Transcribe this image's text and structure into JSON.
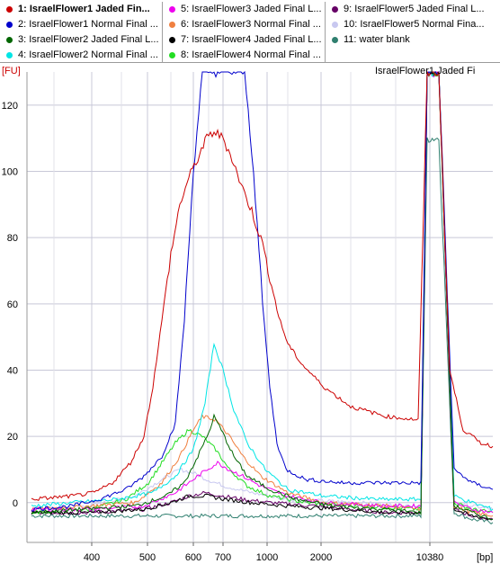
{
  "legend": [
    {
      "label": "1: IsraelFlower1 Jaded Fin...",
      "color": "#cc0000",
      "selected": true
    },
    {
      "label": "2: IsraelFlower1 Normal Final ...",
      "color": "#0000cc",
      "selected": false
    },
    {
      "label": "3: IsraelFlower2 Jaded Final L...",
      "color": "#006600",
      "selected": false
    },
    {
      "label": "4: IsraelFlower2 Normal Final ...",
      "color": "#00e5e5",
      "selected": false
    },
    {
      "label": "5: IsraelFlower3 Jaded Final L...",
      "color": "#ee00ee",
      "selected": false
    },
    {
      "label": "6: IsraelFlower3 Normal Final ...",
      "color": "#f08040",
      "selected": false
    },
    {
      "label": "7: IsraelFlower4 Jaded Final L...",
      "color": "#000000",
      "selected": false
    },
    {
      "label": "8: IsraelFlower4 Normal Final ...",
      "color": "#22dd22",
      "selected": false
    },
    {
      "label": "9: IsraelFlower5 Jaded Final L...",
      "color": "#660066",
      "selected": false
    },
    {
      "label": "10: IsraelFlower5 Normal Fina...",
      "color": "#c8c8f0",
      "selected": false
    },
    {
      "label": "11: water blank",
      "color": "#2f7f6f",
      "selected": false
    }
  ],
  "chart_data": {
    "type": "line",
    "sample_title": "IsraelFlower1 Jaded Fi",
    "y_unit": "[FU]",
    "x_unit": "[bp]",
    "ylim": [
      -12,
      130
    ],
    "yticks": [
      0,
      20,
      40,
      60,
      80,
      100,
      120
    ],
    "xtick_labels": [
      "400",
      "500",
      "600",
      "700",
      "1000",
      "2000",
      "10380"
    ],
    "grid": true,
    "series": [
      {
        "color": "#cc0000",
        "points": [
          [
            35,
            1
          ],
          [
            80,
            2
          ],
          [
            105,
            3
          ],
          [
            125,
            6
          ],
          [
            145,
            12
          ],
          [
            160,
            20
          ],
          [
            170,
            35
          ],
          [
            180,
            55
          ],
          [
            190,
            75
          ],
          [
            200,
            90
          ],
          [
            210,
            98
          ],
          [
            220,
            104
          ],
          [
            230,
            110
          ],
          [
            238,
            112
          ],
          [
            248,
            110
          ],
          [
            258,
            104
          ],
          [
            268,
            96
          ],
          [
            280,
            88
          ],
          [
            292,
            78
          ],
          [
            300,
            68
          ],
          [
            310,
            56
          ],
          [
            320,
            48
          ],
          [
            335,
            42
          ],
          [
            360,
            35
          ],
          [
            390,
            29
          ],
          [
            430,
            26
          ],
          [
            465,
            25
          ],
          [
            475,
            130
          ],
          [
            488,
            130
          ],
          [
            500,
            40
          ],
          [
            515,
            22
          ],
          [
            535,
            18
          ],
          [
            548,
            17
          ]
        ]
      },
      {
        "color": "#0000cc",
        "points": [
          [
            35,
            -2
          ],
          [
            80,
            -1
          ],
          [
            110,
            1
          ],
          [
            140,
            4
          ],
          [
            160,
            8
          ],
          [
            180,
            14
          ],
          [
            195,
            24
          ],
          [
            205,
            55
          ],
          [
            215,
            100
          ],
          [
            225,
            130
          ],
          [
            230,
            130
          ],
          [
            272,
            130
          ],
          [
            282,
            100
          ],
          [
            292,
            60
          ],
          [
            300,
            35
          ],
          [
            308,
            18
          ],
          [
            318,
            10
          ],
          [
            340,
            7
          ],
          [
            380,
            6
          ],
          [
            440,
            6
          ],
          [
            468,
            6
          ],
          [
            475,
            130
          ],
          [
            488,
            130
          ],
          [
            505,
            10
          ],
          [
            525,
            6
          ],
          [
            548,
            4
          ]
        ]
      },
      {
        "color": "#006600",
        "points": [
          [
            35,
            -3
          ],
          [
            90,
            -2
          ],
          [
            150,
            -1
          ],
          [
            185,
            2
          ],
          [
            205,
            6
          ],
          [
            220,
            14
          ],
          [
            232,
            21
          ],
          [
            238,
            26
          ],
          [
            246,
            22
          ],
          [
            260,
            14
          ],
          [
            275,
            8
          ],
          [
            300,
            4
          ],
          [
            330,
            1
          ],
          [
            370,
            -1
          ],
          [
            430,
            -2
          ],
          [
            468,
            -3
          ],
          [
            475,
            130
          ],
          [
            488,
            130
          ],
          [
            505,
            -1
          ],
          [
            525,
            -3
          ],
          [
            548,
            -5
          ]
        ]
      },
      {
        "color": "#00e5e5",
        "points": [
          [
            35,
            -1
          ],
          [
            80,
            0
          ],
          [
            130,
            1
          ],
          [
            170,
            3
          ],
          [
            195,
            8
          ],
          [
            215,
            16
          ],
          [
            228,
            30
          ],
          [
            238,
            48
          ],
          [
            248,
            40
          ],
          [
            260,
            28
          ],
          [
            275,
            18
          ],
          [
            295,
            10
          ],
          [
            320,
            4
          ],
          [
            360,
            2
          ],
          [
            420,
            1
          ],
          [
            468,
            1
          ],
          [
            475,
            130
          ],
          [
            488,
            130
          ],
          [
            505,
            2
          ],
          [
            525,
            0
          ],
          [
            548,
            -2
          ]
        ]
      },
      {
        "color": "#ee00ee",
        "points": [
          [
            35,
            -2
          ],
          [
            100,
            -2
          ],
          [
            160,
            -1
          ],
          [
            195,
            3
          ],
          [
            215,
            7
          ],
          [
            230,
            10
          ],
          [
            242,
            12
          ],
          [
            255,
            10
          ],
          [
            270,
            8
          ],
          [
            290,
            5
          ],
          [
            320,
            2
          ],
          [
            360,
            0
          ],
          [
            430,
            -1
          ],
          [
            468,
            -1
          ],
          [
            475,
            130
          ],
          [
            488,
            130
          ],
          [
            505,
            0
          ],
          [
            525,
            -2
          ],
          [
            548,
            -3
          ]
        ]
      },
      {
        "color": "#f08040",
        "points": [
          [
            35,
            -2
          ],
          [
            100,
            -1
          ],
          [
            150,
            0
          ],
          [
            180,
            6
          ],
          [
            200,
            14
          ],
          [
            215,
            22
          ],
          [
            225,
            26
          ],
          [
            240,
            25
          ],
          [
            255,
            20
          ],
          [
            270,
            14
          ],
          [
            290,
            8
          ],
          [
            320,
            3
          ],
          [
            360,
            0
          ],
          [
            430,
            -1
          ],
          [
            468,
            -2
          ],
          [
            475,
            130
          ],
          [
            488,
            130
          ],
          [
            505,
            -1
          ],
          [
            525,
            -3
          ],
          [
            548,
            -4
          ]
        ]
      },
      {
        "color": "#000000",
        "points": [
          [
            35,
            -3
          ],
          [
            100,
            -3
          ],
          [
            160,
            -2
          ],
          [
            190,
            0
          ],
          [
            210,
            2
          ],
          [
            230,
            2
          ],
          [
            250,
            1
          ],
          [
            280,
            0
          ],
          [
            320,
            -1
          ],
          [
            380,
            -2
          ],
          [
            430,
            -3
          ],
          [
            468,
            -3
          ],
          [
            475,
            130
          ],
          [
            488,
            130
          ],
          [
            505,
            -2
          ],
          [
            525,
            -4
          ],
          [
            548,
            -5
          ]
        ]
      },
      {
        "color": "#22dd22",
        "points": [
          [
            35,
            -3
          ],
          [
            100,
            -2
          ],
          [
            140,
            1
          ],
          [
            165,
            6
          ],
          [
            180,
            12
          ],
          [
            195,
            18
          ],
          [
            210,
            22
          ],
          [
            225,
            20
          ],
          [
            240,
            16
          ],
          [
            255,
            10
          ],
          [
            275,
            5
          ],
          [
            300,
            2
          ],
          [
            340,
            0
          ],
          [
            400,
            -1
          ],
          [
            468,
            -2
          ],
          [
            475,
            130
          ],
          [
            488,
            130
          ],
          [
            505,
            0
          ],
          [
            525,
            -2
          ],
          [
            548,
            -3
          ]
        ]
      },
      {
        "color": "#660066",
        "points": [
          [
            35,
            -3
          ],
          [
            100,
            -3
          ],
          [
            160,
            -2
          ],
          [
            190,
            0
          ],
          [
            210,
            2
          ],
          [
            228,
            3
          ],
          [
            248,
            2
          ],
          [
            270,
            1
          ],
          [
            300,
            0
          ],
          [
            350,
            -1
          ],
          [
            430,
            -3
          ],
          [
            468,
            -3
          ],
          [
            475,
            130
          ],
          [
            488,
            130
          ],
          [
            505,
            -2
          ],
          [
            525,
            -4
          ],
          [
            548,
            -5
          ]
        ]
      },
      {
        "color": "#c8c8f0",
        "points": [
          [
            35,
            -2
          ],
          [
            100,
            -1
          ],
          [
            150,
            2
          ],
          [
            180,
            7
          ],
          [
            200,
            10
          ],
          [
            215,
            9
          ],
          [
            230,
            7
          ],
          [
            250,
            5
          ],
          [
            280,
            3
          ],
          [
            320,
            1
          ],
          [
            400,
            0
          ],
          [
            468,
            -1
          ],
          [
            475,
            130
          ],
          [
            488,
            130
          ],
          [
            505,
            0
          ],
          [
            525,
            -1
          ],
          [
            548,
            -2
          ]
        ]
      },
      {
        "color": "#2f7f6f",
        "points": [
          [
            35,
            -4
          ],
          [
            100,
            -4
          ],
          [
            200,
            -4
          ],
          [
            300,
            -4
          ],
          [
            400,
            -4
          ],
          [
            468,
            -4
          ],
          [
            475,
            110
          ],
          [
            488,
            110
          ],
          [
            505,
            -3
          ],
          [
            525,
            -5
          ],
          [
            548,
            -6
          ]
        ]
      }
    ]
  }
}
